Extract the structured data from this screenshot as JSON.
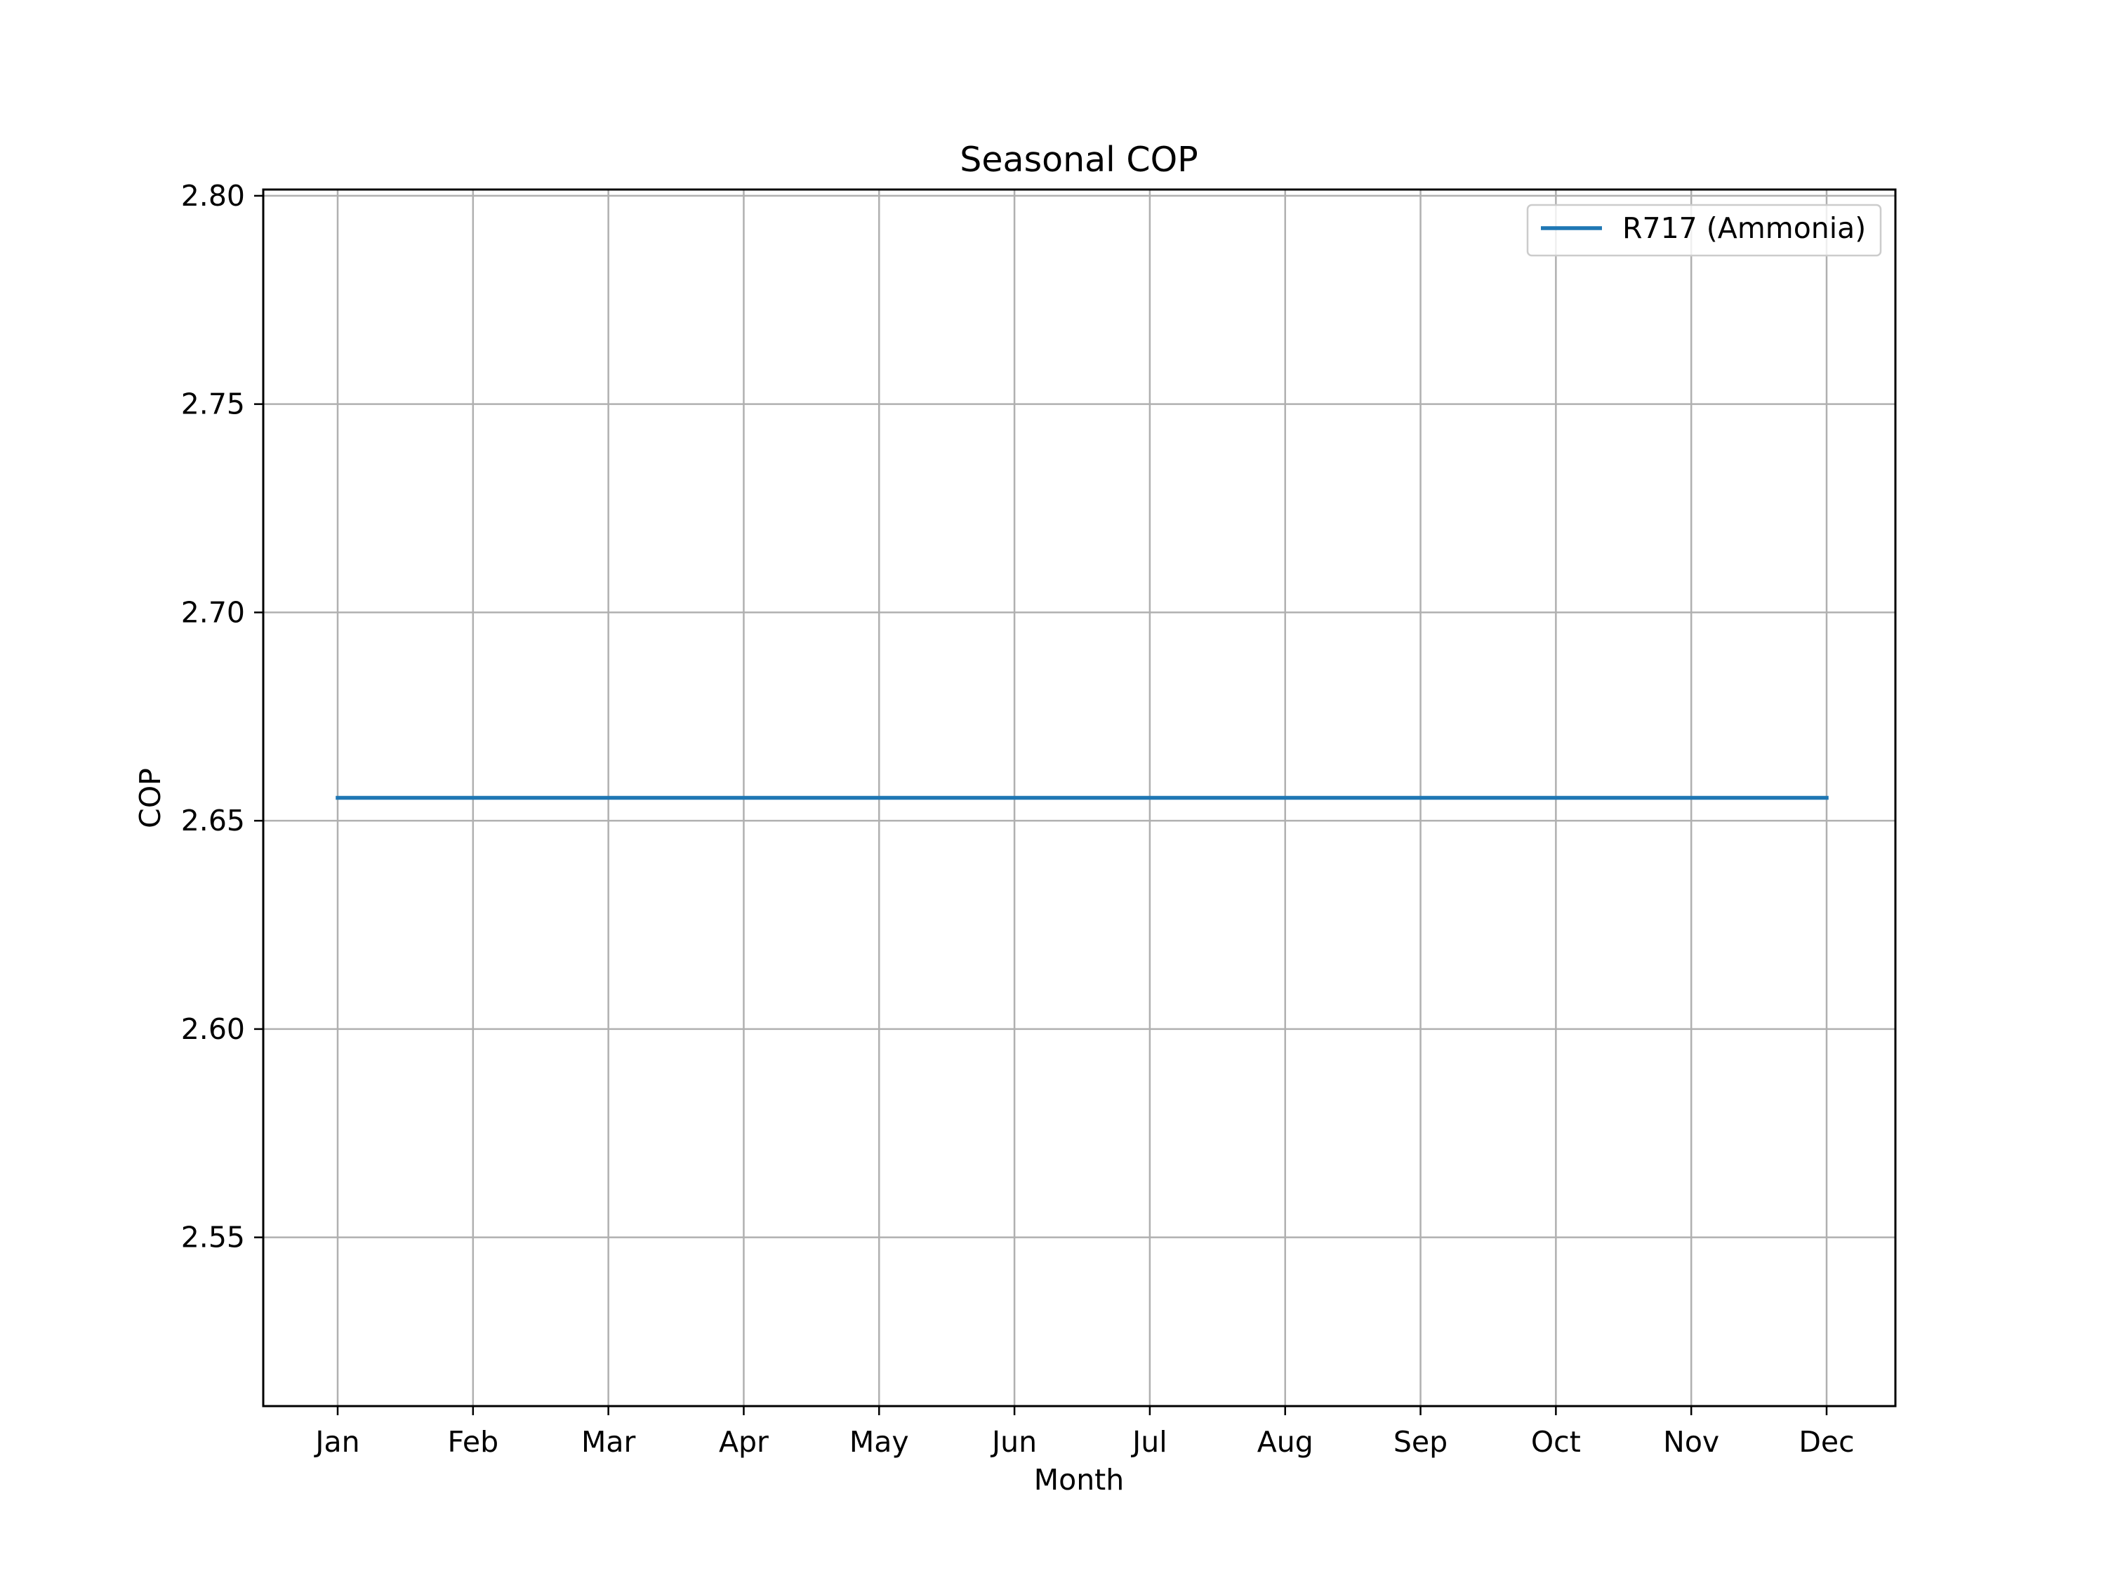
{
  "chart_data": {
    "type": "line",
    "title": "Seasonal COP",
    "xlabel": "Month",
    "ylabel": "COP",
    "categories": [
      "Jan",
      "Feb",
      "Mar",
      "Apr",
      "May",
      "Jun",
      "Jul",
      "Aug",
      "Sep",
      "Oct",
      "Nov",
      "Dec"
    ],
    "series": [
      {
        "name": "R717 (Ammonia)",
        "color": "#1f77b4",
        "values": [
          2.6555,
          2.6555,
          2.6555,
          2.6555,
          2.6555,
          2.6555,
          2.6555,
          2.6555,
          2.6555,
          2.6555,
          2.6555,
          2.6555
        ]
      }
    ],
    "ylim": [
      2.5095,
      2.8015
    ],
    "yticks": [
      2.55,
      2.6,
      2.65,
      2.7,
      2.75,
      2.8
    ],
    "ytick_labels": [
      "2.55",
      "2.60",
      "2.65",
      "2.70",
      "2.75",
      "2.80"
    ],
    "grid": true,
    "legend_position": "top-right"
  }
}
